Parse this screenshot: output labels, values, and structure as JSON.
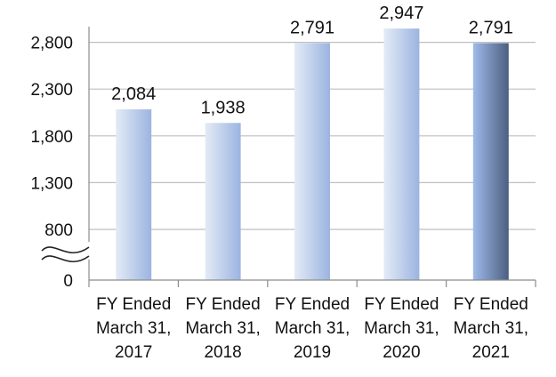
{
  "chart_data": {
    "type": "bar",
    "categories": [
      [
        "FY Ended",
        "March 31,",
        "2017"
      ],
      [
        "FY Ended",
        "March 31,",
        "2018"
      ],
      [
        "FY Ended",
        "March 31,",
        "2019"
      ],
      [
        "FY Ended",
        "March 31,",
        "2020"
      ],
      [
        "FY Ended",
        "March 31,",
        "2021"
      ]
    ],
    "values": [
      2084,
      1938,
      2791,
      2947,
      2791
    ],
    "data_labels": [
      "2,084",
      "1,938",
      "2,791",
      "2,947",
      "2,791"
    ],
    "y_ticks": [
      {
        "value": 0,
        "label": "0"
      },
      {
        "value": 800,
        "label": "800"
      },
      {
        "value": 1300,
        "label": "1,300"
      },
      {
        "value": 1800,
        "label": "1,800"
      },
      {
        "value": 2300,
        "label": "2,300"
      },
      {
        "value": 2800,
        "label": "2,800"
      }
    ],
    "ylim": [
      0,
      3000
    ],
    "axis_break": true,
    "grid": true,
    "title": "",
    "xlabel": "",
    "ylabel": "",
    "colors": {
      "bar_light": "#dde6f4",
      "bar_mid": "#9db5e2",
      "bar_highlight_dark": "#4f6385",
      "grid": "#bfbfbf",
      "axis": "#8c8c8c"
    }
  }
}
